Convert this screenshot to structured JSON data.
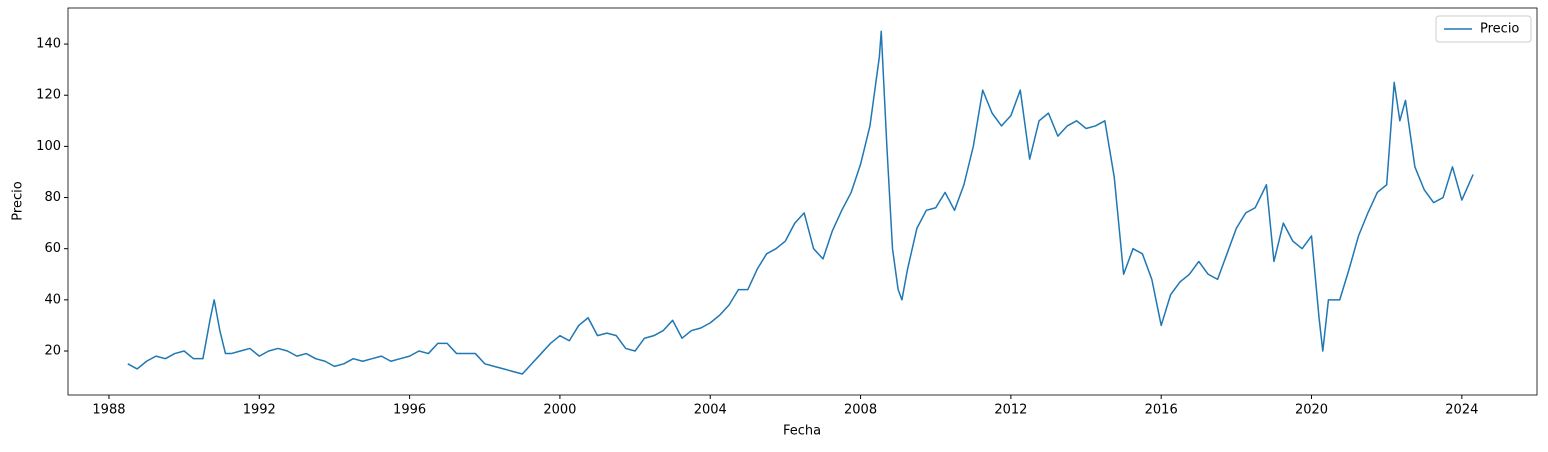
{
  "chart_data": {
    "type": "line",
    "xlabel": "Fecha",
    "ylabel": "Precio",
    "x": [
      1988.5,
      1988.75,
      1989.0,
      1989.25,
      1989.5,
      1989.75,
      1990.0,
      1990.25,
      1990.5,
      1990.7,
      1990.8,
      1990.95,
      1991.1,
      1991.25,
      1991.5,
      1991.75,
      1992.0,
      1992.25,
      1992.5,
      1992.75,
      1993.0,
      1993.25,
      1993.5,
      1993.75,
      1994.0,
      1994.25,
      1994.5,
      1994.75,
      1995.0,
      1995.25,
      1995.5,
      1995.75,
      1996.0,
      1996.25,
      1996.5,
      1996.75,
      1997.0,
      1997.25,
      1997.5,
      1997.75,
      1998.0,
      1998.25,
      1998.5,
      1998.75,
      1999.0,
      1999.25,
      1999.5,
      1999.75,
      2000.0,
      2000.25,
      2000.5,
      2000.75,
      2001.0,
      2001.25,
      2001.5,
      2001.75,
      2002.0,
      2002.25,
      2002.5,
      2002.75,
      2003.0,
      2003.25,
      2003.5,
      2003.75,
      2004.0,
      2004.25,
      2004.5,
      2004.75,
      2005.0,
      2005.25,
      2005.5,
      2005.75,
      2006.0,
      2006.25,
      2006.5,
      2006.75,
      2007.0,
      2007.25,
      2007.5,
      2007.75,
      2008.0,
      2008.25,
      2008.5,
      2008.55,
      2008.7,
      2008.85,
      2009.0,
      2009.1,
      2009.25,
      2009.5,
      2009.75,
      2010.0,
      2010.25,
      2010.5,
      2010.75,
      2011.0,
      2011.25,
      2011.5,
      2011.75,
      2012.0,
      2012.25,
      2012.5,
      2012.75,
      2013.0,
      2013.25,
      2013.5,
      2013.75,
      2014.0,
      2014.25,
      2014.5,
      2014.75,
      2015.0,
      2015.25,
      2015.5,
      2015.75,
      2016.0,
      2016.25,
      2016.5,
      2016.75,
      2017.0,
      2017.25,
      2017.5,
      2017.75,
      2018.0,
      2018.25,
      2018.5,
      2018.8,
      2019.0,
      2019.25,
      2019.5,
      2019.75,
      2020.0,
      2020.2,
      2020.3,
      2020.45,
      2020.75,
      2021.0,
      2021.25,
      2021.5,
      2021.75,
      2022.0,
      2022.2,
      2022.35,
      2022.5,
      2022.75,
      2023.0,
      2023.25,
      2023.5,
      2023.75,
      2024.0,
      2024.3
    ],
    "series": [
      {
        "name": "Precio",
        "color": "#1f77b4",
        "values": [
          15,
          13,
          16,
          18,
          17,
          19,
          20,
          17,
          17,
          33,
          40,
          28,
          19,
          19,
          20,
          21,
          18,
          20,
          21,
          20,
          18,
          19,
          17,
          16,
          14,
          15,
          17,
          16,
          17,
          18,
          16,
          17,
          18,
          20,
          19,
          23,
          23,
          19,
          19,
          19,
          15,
          14,
          13,
          12,
          11,
          15,
          19,
          23,
          26,
          24,
          30,
          33,
          26,
          27,
          26,
          21,
          20,
          25,
          26,
          28,
          32,
          25,
          28,
          29,
          31,
          34,
          38,
          44,
          44,
          52,
          58,
          60,
          63,
          70,
          74,
          60,
          56,
          67,
          75,
          82,
          93,
          108,
          135,
          145,
          100,
          60,
          44,
          40,
          52,
          68,
          75,
          76,
          82,
          75,
          85,
          100,
          122,
          113,
          108,
          112,
          122,
          95,
          110,
          113,
          104,
          108,
          110,
          107,
          108,
          110,
          88,
          50,
          60,
          58,
          48,
          30,
          42,
          47,
          50,
          55,
          50,
          48,
          58,
          68,
          74,
          76,
          85,
          55,
          70,
          63,
          60,
          65,
          33,
          20,
          40,
          40,
          52,
          65,
          74,
          82,
          85,
          125,
          110,
          118,
          92,
          83,
          78,
          80,
          92,
          79,
          89
        ]
      }
    ],
    "xlim": [
      1986.91,
      2026.0
    ],
    "xticks": [
      1988,
      1992,
      1996,
      2000,
      2004,
      2008,
      2012,
      2016,
      2020,
      2024
    ],
    "ylim": [
      2.8,
      154.1
    ],
    "yticks": [
      20,
      40,
      60,
      80,
      100,
      120,
      140
    ],
    "legend": "upper right"
  }
}
